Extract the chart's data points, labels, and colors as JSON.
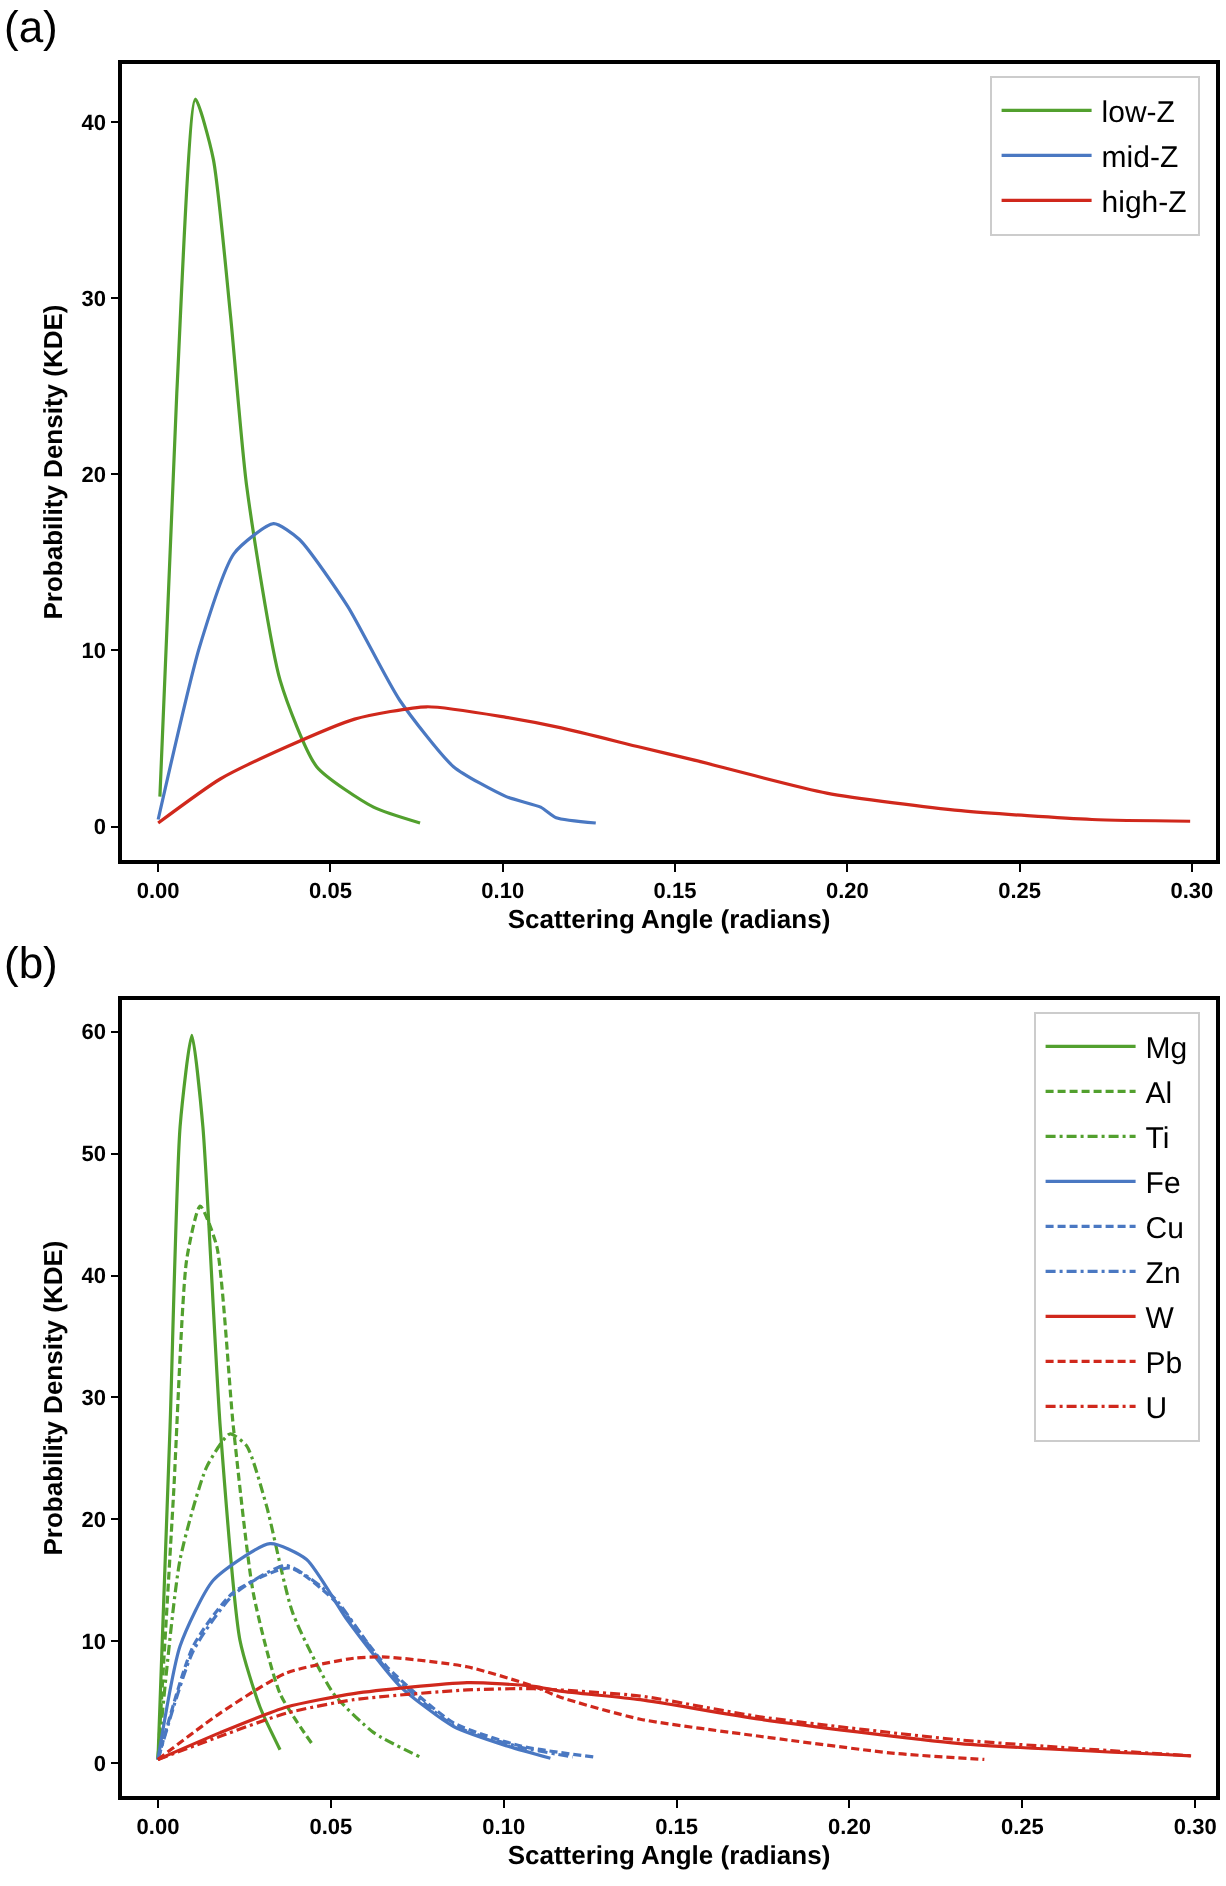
{
  "chart_data": [
    {
      "type": "line",
      "title": "(a)",
      "xlabel": "Scattering Angle (radians)",
      "ylabel": "Probability Density (KDE)",
      "xlim": [
        -0.0105,
        0.307
      ],
      "ylim": [
        -1.9,
        43.3
      ],
      "xticks": [
        {
          "value": 0,
          "label": "0.00"
        },
        {
          "value": 0.05,
          "label": "0.05"
        },
        {
          "value": 0.1,
          "label": "0.10"
        },
        {
          "value": 0.15,
          "label": "0.15"
        },
        {
          "value": 0.2,
          "label": "0.20"
        },
        {
          "value": 0.25,
          "label": "0.25"
        },
        {
          "value": 0.3,
          "label": "0.30"
        }
      ],
      "yticks": [
        0,
        10,
        20,
        30,
        40
      ],
      "legend": "top right",
      "marker": "none",
      "series": [
        {
          "name": "low-Z",
          "color": "#52a02e",
          "line_style": "solid",
          "x": [
            0.0005,
            0.0054,
            0.0108,
            0.016,
            0.021,
            0.0257,
            0.0354,
            0.046,
            0.0625,
            0.076
          ],
          "values": [
            1.7,
            24.6,
            41.3,
            37.9,
            29,
            19.3,
            8.3,
            3.4,
            1.1,
            0.2
          ]
        },
        {
          "name": "mid-Z",
          "color": "#4a78c2",
          "line_style": "solid",
          "x": [
            0.0,
            0.012,
            0.022,
            0.0335,
            0.041,
            0.055,
            0.07,
            0.0857,
            0.101,
            0.111,
            0.1155,
            0.127
          ],
          "values": [
            0.4,
            10.2,
            15.5,
            17.2,
            16.3,
            12.5,
            7.2,
            3.4,
            1.7,
            1.1,
            0.5,
            0.2
          ]
        },
        {
          "name": "high-Z",
          "color": "#d0281c",
          "line_style": "solid",
          "x": [
            0.0,
            0.018,
            0.037,
            0.057,
            0.078,
            0.101,
            0.117,
            0.14,
            0.155,
            0.194,
            0.233,
            0.271,
            0.2995
          ],
          "values": [
            0.2,
            2.7,
            4.5,
            6.1,
            6.8,
            6.2,
            5.6,
            4.5,
            3.8,
            1.9,
            0.9,
            0.4,
            0.3
          ]
        }
      ]
    },
    {
      "type": "line",
      "title": "(b)",
      "xlabel": "Scattering Angle (radians)",
      "ylabel": "Probability Density (KDE)",
      "xlim": [
        -0.0104,
        0.306
      ],
      "ylim": [
        -2.7,
        62.6
      ],
      "xticks": [
        {
          "value": 0,
          "label": "0.00"
        },
        {
          "value": 0.05,
          "label": "0.05"
        },
        {
          "value": 0.1,
          "label": "0.10"
        },
        {
          "value": 0.15,
          "label": "0.15"
        },
        {
          "value": 0.2,
          "label": "0.20"
        },
        {
          "value": 0.25,
          "label": "0.25"
        },
        {
          "value": 0.3,
          "label": "0.30"
        }
      ],
      "yticks": [
        0,
        10,
        20,
        30,
        40,
        50,
        60
      ],
      "legend": "top right",
      "marker": "none",
      "series": [
        {
          "name": "Mg",
          "color": "#52a02e",
          "line_style": "solid",
          "x": [
            0.0,
            0.0035,
            0.0064,
            0.0098,
            0.013,
            0.018,
            0.0237,
            0.0295,
            0.0353
          ],
          "values": [
            0.3,
            27.6,
            52.2,
            59.7,
            52.2,
            27.6,
            10.1,
            4.6,
            1.1
          ]
        },
        {
          "name": "Al",
          "color": "#52a02e",
          "line_style": "dashed",
          "x": [
            0.0,
            0.0045,
            0.0083,
            0.0122,
            0.017,
            0.0218,
            0.0276,
            0.0353,
            0.045
          ],
          "values": [
            0.3,
            22,
            41.3,
            45.7,
            42.4,
            27.6,
            13.9,
            5.7,
            1.4
          ]
        },
        {
          "name": "Ti",
          "color": "#52a02e",
          "line_style": "dashdot",
          "x": [
            0.0,
            0.0064,
            0.0141,
            0.0208,
            0.0257,
            0.0314,
            0.039,
            0.0508,
            0.0624,
            0.0758
          ],
          "values": [
            0.3,
            16.7,
            24.3,
            27,
            26,
            21.1,
            12.3,
            5.7,
            2.5,
            0.5
          ]
        },
        {
          "name": "Fe",
          "color": "#4a78c2",
          "line_style": "solid",
          "x": [
            0.0,
            0.0064,
            0.016,
            0.0324,
            0.043,
            0.0546,
            0.07,
            0.0855,
            0.101,
            0.1135
          ],
          "values": [
            0.3,
            9.6,
            15,
            18,
            16.7,
            11.8,
            6.3,
            3,
            1.4,
            0.4
          ]
        },
        {
          "name": "Cu",
          "color": "#4a78c2",
          "line_style": "dashed",
          "x": [
            0.0,
            0.0102,
            0.0218,
            0.0382,
            0.0508,
            0.0662,
            0.0855,
            0.105,
            0.126
          ],
          "values": [
            0.3,
            9.6,
            14,
            16,
            13.4,
            7.9,
            3.3,
            1.4,
            0.5
          ]
        },
        {
          "name": "Zn",
          "color": "#4a78c2",
          "line_style": "dashdot",
          "x": [
            0.0,
            0.0102,
            0.0218,
            0.037,
            0.0508,
            0.0662,
            0.0855,
            0.105,
            0.12
          ],
          "values": [
            0.3,
            9.2,
            13.8,
            16.2,
            13.6,
            7.7,
            3.1,
            1.3,
            0.5
          ]
        },
        {
          "name": "W",
          "color": "#d0281c",
          "line_style": "solid",
          "x": [
            0.0,
            0.018,
            0.0372,
            0.0566,
            0.0894,
            0.1087,
            0.1164,
            0.1395,
            0.174,
            0.232,
            0.2988
          ],
          "values": [
            0.3,
            2.5,
            4.6,
            5.7,
            6.6,
            6.3,
            5.9,
            5.2,
            3.6,
            1.6,
            0.6
          ]
        },
        {
          "name": "Pb",
          "color": "#d0281c",
          "line_style": "dashed",
          "x": [
            0.0,
            0.018,
            0.0372,
            0.0566,
            0.066,
            0.0894,
            0.1087,
            0.1164,
            0.1395,
            0.174,
            0.213,
            0.239
          ],
          "values": [
            0.3,
            4.1,
            7.4,
            8.6,
            8.7,
            7.9,
            6.3,
            5.4,
            3.6,
            2.2,
            0.8,
            0.3
          ]
        },
        {
          "name": "U",
          "color": "#d0281c",
          "line_style": "dashdot",
          "x": [
            0.0,
            0.018,
            0.0372,
            0.0566,
            0.0894,
            0.1087,
            0.1395,
            0.174,
            0.232,
            0.2988
          ],
          "values": [
            0.3,
            2.2,
            4.1,
            5.2,
            6.0,
            6.1,
            5.5,
            3.8,
            1.9,
            0.6
          ]
        }
      ]
    }
  ]
}
